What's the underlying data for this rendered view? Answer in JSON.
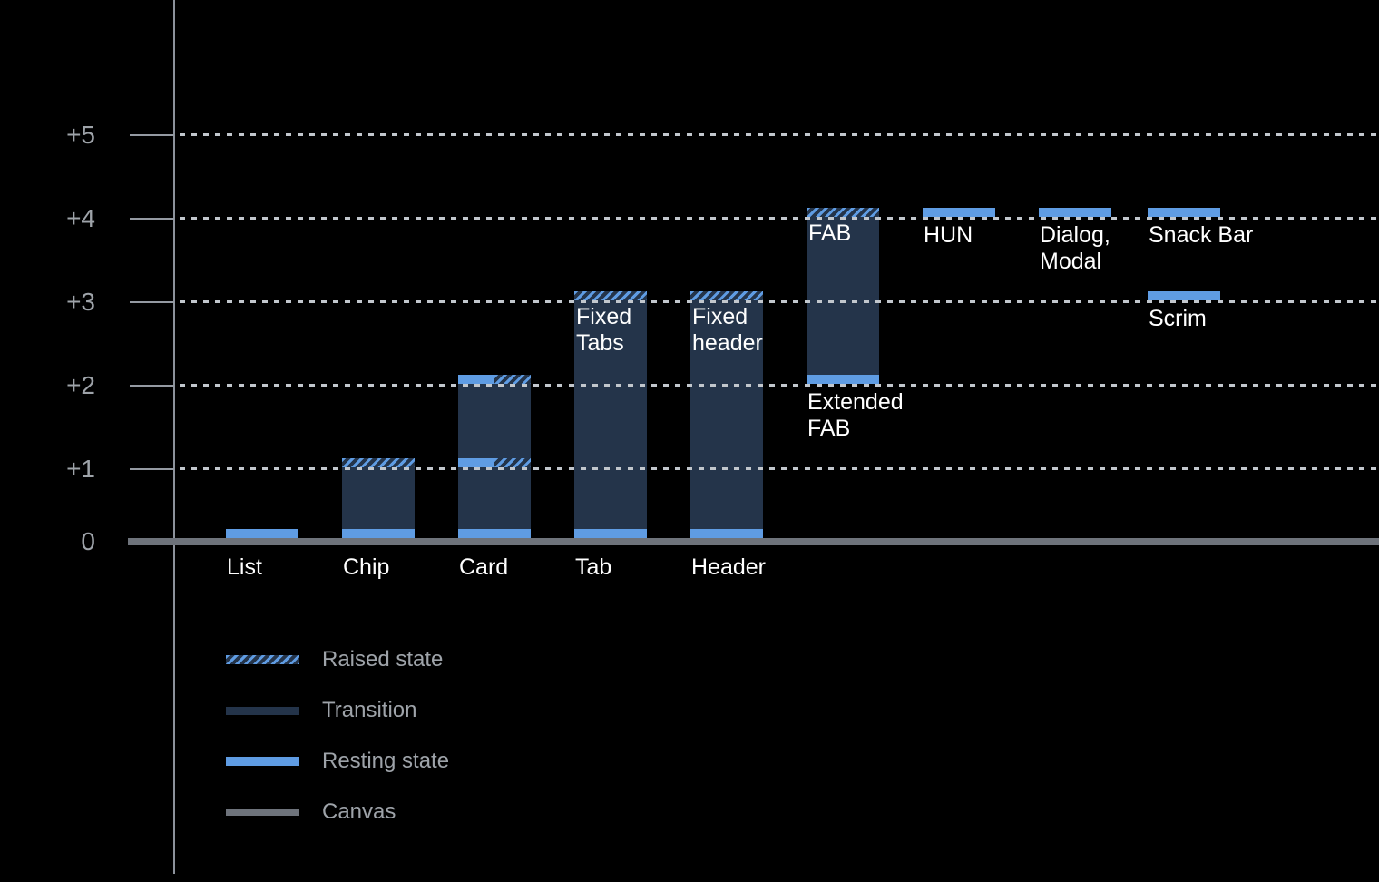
{
  "chart_data": {
    "type": "bar",
    "subtype": "material-elevation-ranges",
    "title": "",
    "xlabel": "",
    "ylabel": "",
    "ylim": [
      0,
      5.5
    ],
    "grid": "dotted horizontal lines at +1 through +5, solid canvas baseline at 0",
    "legend_position": "bottom-left",
    "y_ticks": [
      {
        "label": "+5",
        "value": 5
      },
      {
        "label": "+4",
        "value": 4
      },
      {
        "label": "+3",
        "value": 3
      },
      {
        "label": "+2",
        "value": 2
      },
      {
        "label": "+1",
        "value": 1
      },
      {
        "label": "0",
        "value": 0
      }
    ],
    "bars": [
      {
        "name": "list",
        "category_label": "List",
        "segments": [
          {
            "kind": "resting",
            "at": 0
          }
        ]
      },
      {
        "name": "chip",
        "category_label": "Chip",
        "segments": [
          {
            "kind": "resting",
            "at": 0
          },
          {
            "kind": "transition",
            "from": 0,
            "to": 1
          },
          {
            "kind": "raised",
            "at": 1
          }
        ]
      },
      {
        "name": "card",
        "category_label": "Card",
        "segments": [
          {
            "kind": "resting",
            "at": 0
          },
          {
            "kind": "transition",
            "from": 0,
            "to": 1
          },
          {
            "kind": "resting_raised",
            "at": 1
          },
          {
            "kind": "transition",
            "from": 1,
            "to": 2
          },
          {
            "kind": "resting_raised",
            "at": 2
          }
        ]
      },
      {
        "name": "tab",
        "category_label": "Tab",
        "inner_label_lines": [
          "Fixed",
          "Tabs"
        ],
        "segments": [
          {
            "kind": "resting",
            "at": 0
          },
          {
            "kind": "transition",
            "from": 0,
            "to": 3
          },
          {
            "kind": "raised",
            "at": 3
          }
        ]
      },
      {
        "name": "header",
        "category_label": "Header",
        "inner_label_lines": [
          "Fixed",
          "header"
        ],
        "segments": [
          {
            "kind": "resting",
            "at": 0
          },
          {
            "kind": "transition",
            "from": 0,
            "to": 3
          },
          {
            "kind": "raised",
            "at": 3
          }
        ]
      },
      {
        "name": "fab",
        "inner_label_lines": [
          "FAB"
        ],
        "below_label_lines": [
          "Extended",
          "FAB"
        ],
        "segments": [
          {
            "kind": "resting",
            "at": 2
          },
          {
            "kind": "transition",
            "from": 2,
            "to": 4
          },
          {
            "kind": "raised",
            "at": 4
          }
        ]
      },
      {
        "name": "hun",
        "below_label_lines": [
          "HUN"
        ],
        "segments": [
          {
            "kind": "resting",
            "at": 4
          }
        ]
      },
      {
        "name": "dialog-modal",
        "below_label_lines": [
          "Dialog,",
          "Modal"
        ],
        "segments": [
          {
            "kind": "resting",
            "at": 4
          }
        ]
      },
      {
        "name": "snack-bar",
        "below_label_lines": [
          "Snack Bar"
        ],
        "segments": [
          {
            "kind": "resting",
            "at": 4
          }
        ]
      },
      {
        "name": "scrim",
        "below_label_lines": [
          "Scrim"
        ],
        "segments": [
          {
            "kind": "resting",
            "at": 3
          }
        ]
      }
    ],
    "legend": [
      {
        "kind": "raised",
        "label": "Raised state"
      },
      {
        "kind": "transition",
        "label": "Transition"
      },
      {
        "kind": "resting",
        "label": "Resting state"
      },
      {
        "kind": "canvas",
        "label": "Canvas"
      }
    ],
    "colors": {
      "background": "#000000",
      "resting_state": "#5F9CE3",
      "transition": "#24344A",
      "raised_stripe": "#5F9CE3",
      "canvas": "#6E737B",
      "axis_text": "#9EA3A9",
      "grid_dots": "#C2C7CD",
      "label_text": "#FFFFFF"
    }
  }
}
